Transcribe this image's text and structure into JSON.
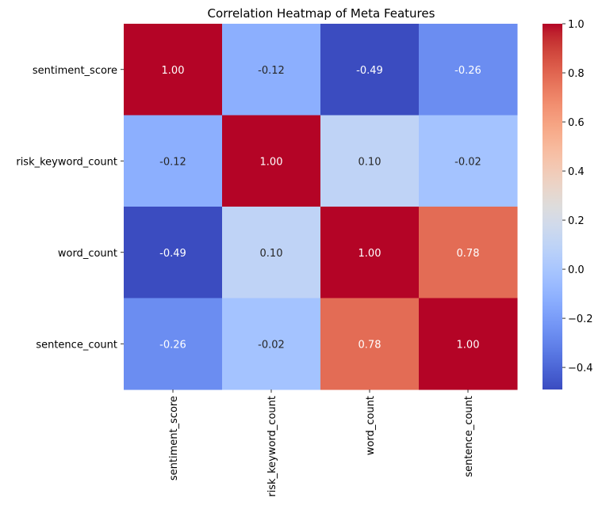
{
  "chart_data": {
    "type": "heatmap",
    "title": "Correlation Heatmap of Meta Features",
    "xlabel": "",
    "ylabel": "",
    "row_labels": [
      "sentiment_score",
      "risk_keyword_count",
      "word_count",
      "sentence_count"
    ],
    "col_labels": [
      "sentiment_score",
      "risk_keyword_count",
      "word_count",
      "sentence_count"
    ],
    "values": [
      [
        1.0,
        -0.12,
        -0.49,
        -0.26
      ],
      [
        -0.12,
        1.0,
        0.1,
        -0.02
      ],
      [
        -0.49,
        0.1,
        1.0,
        0.78
      ],
      [
        -0.26,
        -0.02,
        0.78,
        1.0
      ]
    ],
    "value_format": "0.00",
    "colormap": "coolwarm",
    "colorbar": {
      "vmin": -0.49,
      "vmax": 1.0,
      "ticks": [
        1.0,
        0.8,
        0.6,
        0.4,
        0.2,
        0.0,
        -0.2,
        -0.4
      ],
      "tick_labels": [
        "1.0",
        "0.8",
        "0.6",
        "0.4",
        "0.2",
        "0.0",
        "−0.2",
        "−0.4"
      ]
    },
    "colors": {
      "low": "#3b4cc0",
      "mid": "#dddcdc",
      "high": "#b40426"
    }
  }
}
